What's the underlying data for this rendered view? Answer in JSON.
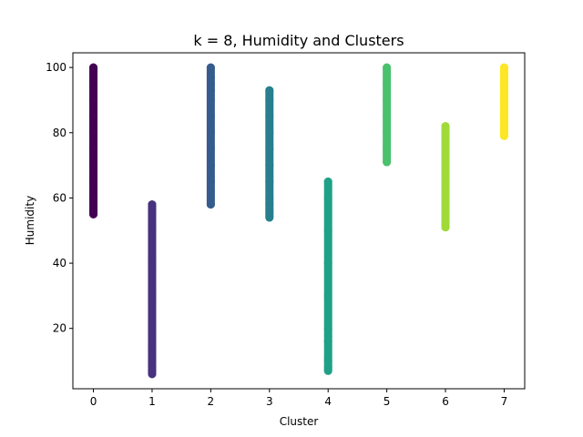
{
  "chart_data": {
    "type": "scatter",
    "title": "k = 8, Humidity and Clusters",
    "xlabel": "Cluster",
    "ylabel": "Humidity",
    "xlim": [
      -0.35,
      7.35
    ],
    "ylim": [
      1.5,
      104.5
    ],
    "xticks": [
      0,
      1,
      2,
      3,
      4,
      5,
      6,
      7
    ],
    "yticks": [
      20,
      40,
      60,
      80,
      100
    ],
    "grid": false,
    "legend": "none",
    "colormap": "viridis",
    "series": [
      {
        "cluster": 0,
        "color": "#440154",
        "min": 55,
        "max": 100,
        "points": [
          55,
          56,
          60,
          65,
          70,
          75,
          80,
          85,
          90,
          94,
          96,
          100
        ]
      },
      {
        "cluster": 1,
        "color": "#46327e",
        "min": 6,
        "max": 58,
        "points": [
          6,
          7,
          8,
          10,
          15,
          20,
          30,
          40,
          50,
          55,
          58
        ]
      },
      {
        "cluster": 2,
        "color": "#365c8d",
        "min": 58,
        "max": 100,
        "points": [
          58,
          60,
          62,
          65,
          70,
          75,
          80,
          85,
          90,
          93,
          95,
          97,
          100
        ]
      },
      {
        "cluster": 3,
        "color": "#277f8e",
        "min": 54,
        "max": 93,
        "points": [
          54,
          55,
          56,
          58,
          60,
          65,
          70,
          75,
          80,
          85,
          90,
          93
        ]
      },
      {
        "cluster": 4,
        "color": "#1fa187",
        "min": 7,
        "max": 65,
        "points": [
          7,
          8,
          10,
          11,
          16,
          20,
          30,
          40,
          50,
          60,
          65
        ]
      },
      {
        "cluster": 5,
        "color": "#4ac16d",
        "min": 71,
        "max": 100,
        "points": [
          71,
          75,
          80,
          85,
          90,
          95,
          100
        ]
      },
      {
        "cluster": 6,
        "color": "#a0da39",
        "min": 51,
        "max": 82,
        "points": [
          51,
          55,
          60,
          65,
          70,
          75,
          80,
          82
        ]
      },
      {
        "cluster": 7,
        "color": "#fde725",
        "min": 79,
        "max": 100,
        "points": [
          79,
          80,
          85,
          90,
          95,
          100
        ]
      }
    ]
  }
}
